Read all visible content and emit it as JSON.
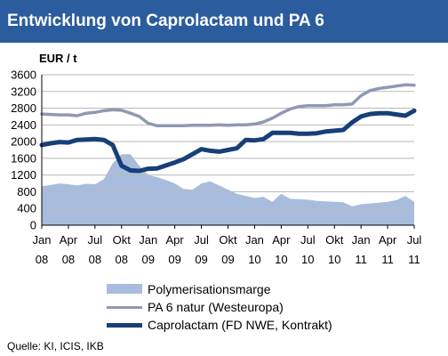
{
  "title": "Entwicklung von Caprolactam und PA 6",
  "source": "Quelle: KI, ICIS, IKB",
  "chart_data": {
    "type": "line",
    "ylabel": "EUR / t",
    "ylim": [
      0,
      3600
    ],
    "yticks": [
      0,
      400,
      800,
      1200,
      1600,
      2000,
      2400,
      2800,
      3200,
      3600
    ],
    "x": [
      0,
      1,
      2,
      3,
      4,
      5,
      6,
      7,
      8,
      9,
      10,
      11,
      12,
      13,
      14,
      15,
      16,
      17,
      18,
      19,
      20,
      21,
      22,
      23,
      24,
      25,
      26,
      27,
      28,
      29,
      30,
      31,
      32,
      33,
      34,
      35,
      36,
      37,
      38,
      39,
      40,
      41,
      42
    ],
    "xticks": [
      {
        "pos": 0,
        "month": "Jan",
        "year": "08"
      },
      {
        "pos": 3,
        "month": "Apr",
        "year": "08"
      },
      {
        "pos": 6,
        "month": "Jul",
        "year": "08"
      },
      {
        "pos": 9,
        "month": "Okt",
        "year": "08"
      },
      {
        "pos": 12,
        "month": "Jan",
        "year": "09"
      },
      {
        "pos": 15,
        "month": "Apr",
        "year": "09"
      },
      {
        "pos": 18,
        "month": "Jul",
        "year": "09"
      },
      {
        "pos": 21,
        "month": "Okt",
        "year": "09"
      },
      {
        "pos": 24,
        "month": "Jan",
        "year": "10"
      },
      {
        "pos": 27,
        "month": "Apr",
        "year": "10"
      },
      {
        "pos": 30,
        "month": "Jul",
        "year": "10"
      },
      {
        "pos": 33,
        "month": "Okt",
        "year": "10"
      },
      {
        "pos": 36,
        "month": "Jan",
        "year": "11"
      },
      {
        "pos": 39,
        "month": "Apr",
        "year": "11"
      },
      {
        "pos": 42,
        "month": "Jul",
        "year": "11"
      }
    ],
    "grid": true,
    "legend_position": "bottom",
    "series": [
      {
        "name": "Polymerisationsmarge",
        "kind": "area",
        "color": "#a8bcdd",
        "values": [
          930,
          960,
          1000,
          980,
          950,
          990,
          980,
          1100,
          1480,
          1700,
          1700,
          1420,
          1200,
          1150,
          1080,
          1000,
          870,
          850,
          1000,
          1050,
          950,
          850,
          750,
          700,
          650,
          680,
          560,
          750,
          630,
          620,
          610,
          580,
          570,
          560,
          550,
          450,
          500,
          520,
          540,
          560,
          600,
          700,
          560
        ]
      },
      {
        "name": "PA 6 natur (Westeuropa)",
        "kind": "line",
        "color": "#8e99b3",
        "values": [
          2660,
          2650,
          2640,
          2640,
          2620,
          2680,
          2700,
          2740,
          2760,
          2750,
          2680,
          2600,
          2440,
          2380,
          2380,
          2380,
          2380,
          2390,
          2390,
          2390,
          2400,
          2390,
          2400,
          2400,
          2420,
          2470,
          2560,
          2680,
          2780,
          2840,
          2860,
          2860,
          2860,
          2880,
          2880,
          2900,
          3100,
          3220,
          3270,
          3300,
          3330,
          3360,
          3350
        ]
      },
      {
        "name": "Caprolactam (FD NWE, Kontrakt)",
        "kind": "line",
        "color": "#173f78",
        "values": [
          1920,
          1960,
          1990,
          1980,
          2040,
          2050,
          2060,
          2040,
          1920,
          1420,
          1310,
          1300,
          1350,
          1360,
          1430,
          1500,
          1580,
          1700,
          1820,
          1780,
          1760,
          1800,
          1840,
          2040,
          2030,
          2060,
          2210,
          2210,
          2210,
          2190,
          2190,
          2200,
          2240,
          2260,
          2280,
          2460,
          2600,
          2660,
          2680,
          2680,
          2650,
          2620,
          2740
        ]
      }
    ]
  }
}
